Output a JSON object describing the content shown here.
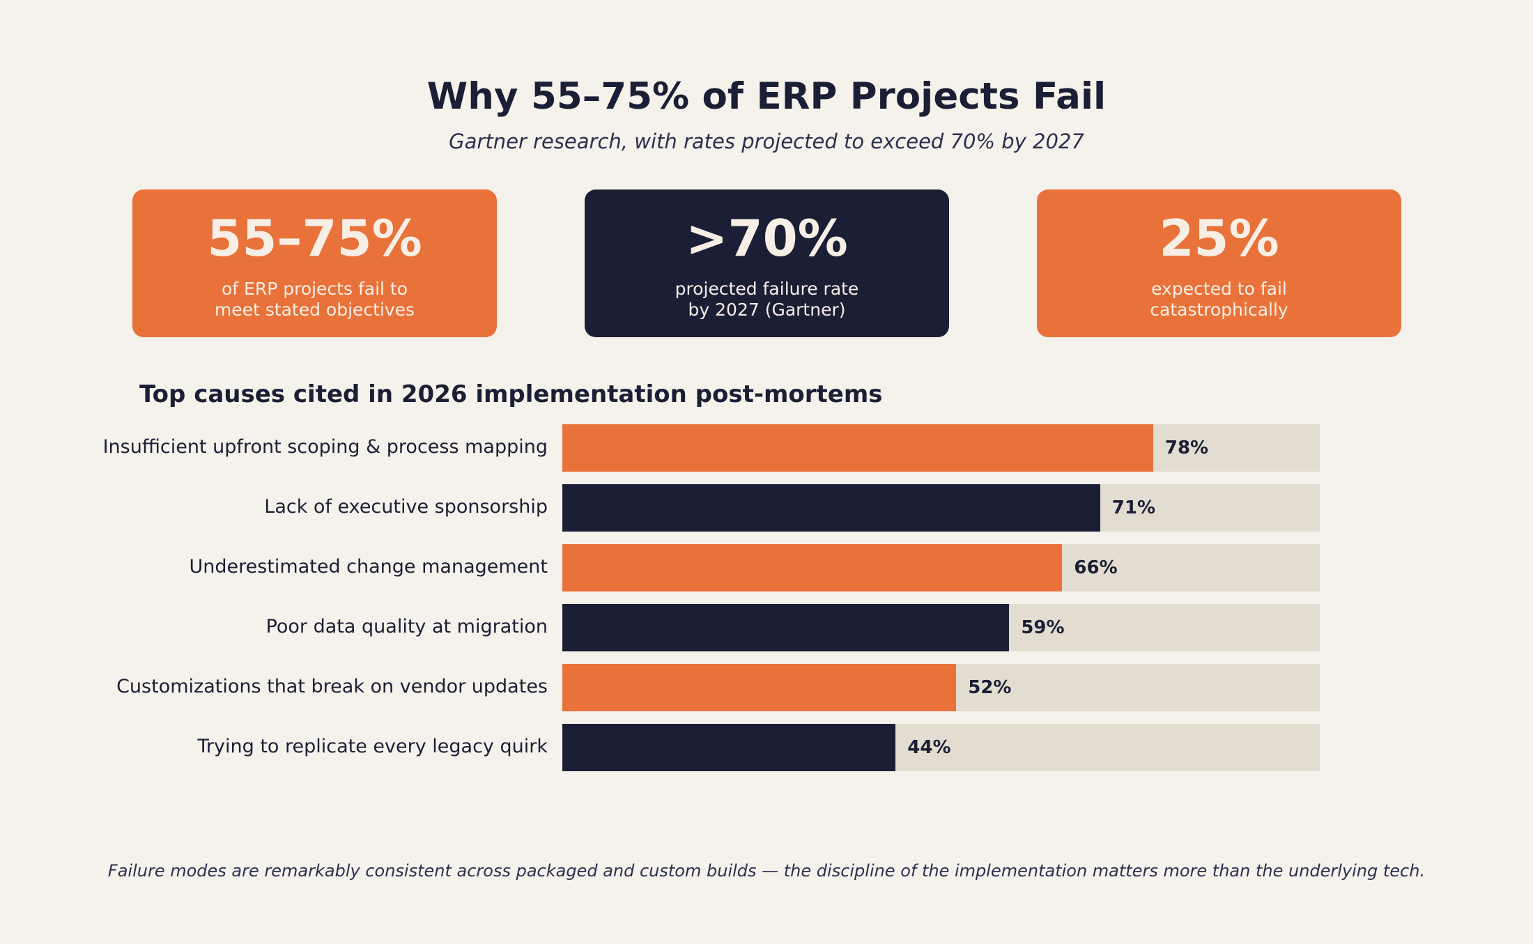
{
  "title": "Why 55–75% of ERP Projects Fail",
  "subtitle": "Gartner research, with rates projected to exceed 70% by 2027",
  "cards": [
    {
      "value": "55–75%",
      "desc": "of ERP projects fail to\nmeet stated objectives",
      "color": "#e8723a"
    },
    {
      "value": ">70%",
      "desc": "projected failure rate\nby 2027 (Gartner)",
      "color": "#1b1f35"
    },
    {
      "value": "25%",
      "desc": "expected to fail\ncatastrophically",
      "color": "#e8723a"
    }
  ],
  "footnote": "Failure modes are remarkably consistent across packaged and custom builds — the discipline of the implementation matters more than the underlying tech.",
  "colors": {
    "accent": "#e8723a",
    "dark": "#1b1f35",
    "track": "#e3dcd0",
    "background": "#f5f1eb"
  },
  "chart_data": {
    "type": "bar",
    "orientation": "horizontal",
    "title": "Top causes cited in 2026 implementation post-mortems",
    "categories": [
      "Insufficient upfront scoping & process mapping",
      "Lack of executive sponsorship",
      "Underestimated change management",
      "Poor data quality at migration",
      "Customizations that break on vendor updates",
      "Trying to replicate every legacy quirk"
    ],
    "values": [
      78,
      71,
      66,
      59,
      52,
      44
    ],
    "value_labels": [
      "78%",
      "71%",
      "66%",
      "59%",
      "52%",
      "44%"
    ],
    "bar_colors": [
      "#e8723a",
      "#1b1f35",
      "#e8723a",
      "#1b1f35",
      "#e8723a",
      "#1b1f35"
    ],
    "xlim": [
      0,
      100
    ],
    "grid": false,
    "legend": "none"
  }
}
